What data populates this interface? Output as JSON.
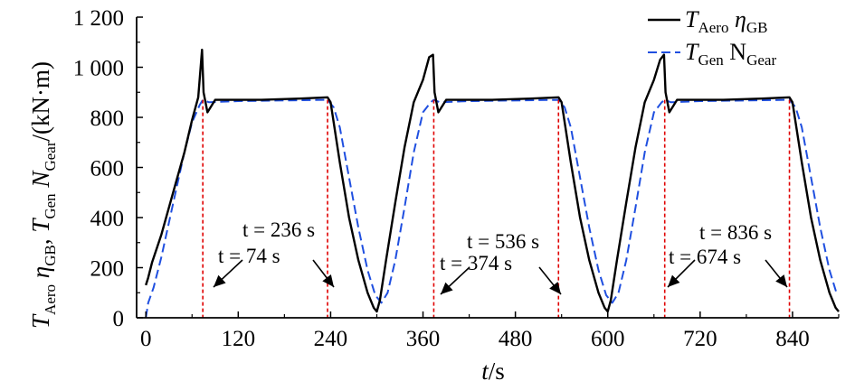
{
  "chart_data": {
    "type": "line",
    "xlabel": {
      "main": "t",
      "unit": "/s"
    },
    "ylabel": {
      "t_aero_main": "T",
      "t_aero_sub": "Aero",
      "eta_main": "η",
      "eta_sub": "GB",
      "sep": ", ",
      "t_gen_main": "T",
      "t_gen_sub": "Gen",
      "n_main": "N",
      "n_sub": "Gear",
      "unit": "/(kN·m)"
    },
    "xlim": [
      -12,
      900
    ],
    "ylim": [
      0,
      1200
    ],
    "x_ticks": [
      0,
      120,
      240,
      360,
      480,
      600,
      720,
      840
    ],
    "x_tick_labels": [
      "0",
      "120",
      "240",
      "360",
      "480",
      "600",
      "720",
      "840"
    ],
    "y_ticks": [
      0,
      200,
      400,
      600,
      800,
      1000,
      1200
    ],
    "y_tick_labels": [
      "0",
      "200",
      "400",
      "600",
      "800",
      "1 000",
      "1 200"
    ],
    "legend": {
      "position": "top-right",
      "entries": [
        {
          "main": "T",
          "sub": "Aero",
          "main2": " η",
          "sub2": "GB",
          "style": "solid",
          "color": "#000000"
        },
        {
          "main": "T",
          "sub": "Gen",
          "main2": " N",
          "sub2": "Gear",
          "style": "dashed",
          "color": "#1f4fe0"
        }
      ]
    },
    "series": [
      {
        "style": "solid",
        "color": "#000000",
        "x": [
          0,
          3,
          8,
          20,
          30,
          40,
          50,
          60,
          68,
          73,
          75,
          80,
          90,
          110,
          150,
          200,
          236,
          240,
          252,
          264,
          276,
          288,
          296,
          300,
          304,
          312,
          324,
          336,
          348,
          360,
          368,
          373,
          375,
          380,
          390,
          410,
          450,
          500,
          536,
          540,
          552,
          564,
          576,
          588,
          596,
          600,
          604,
          612,
          624,
          636,
          648,
          660,
          668,
          673,
          675,
          680,
          690,
          710,
          750,
          800,
          836,
          840,
          852,
          864,
          876,
          888,
          896,
          900
        ],
        "y": [
          130,
          160,
          220,
          330,
          440,
          550,
          660,
          790,
          880,
          1070,
          900,
          820,
          870,
          870,
          870,
          875,
          880,
          860,
          620,
          400,
          230,
          100,
          40,
          25,
          70,
          230,
          460,
          680,
          860,
          950,
          1040,
          1050,
          900,
          820,
          870,
          870,
          870,
          875,
          880,
          860,
          620,
          400,
          230,
          100,
          40,
          25,
          70,
          230,
          460,
          680,
          860,
          950,
          1030,
          1050,
          900,
          820,
          870,
          870,
          870,
          875,
          880,
          860,
          620,
          400,
          230,
          100,
          40,
          25
        ]
      },
      {
        "style": "dashed",
        "color": "#1f4fe0",
        "x": [
          0,
          3,
          10,
          20,
          30,
          40,
          50,
          60,
          70,
          74,
          82,
          120,
          236,
          244,
          252,
          264,
          276,
          288,
          298,
          306,
          314,
          324,
          336,
          348,
          360,
          370,
          374,
          382,
          420,
          536,
          544,
          552,
          564,
          576,
          588,
          598,
          606,
          614,
          624,
          636,
          648,
          660,
          670,
          674,
          682,
          720,
          836,
          844,
          852,
          864,
          876,
          888,
          898
        ],
        "y": [
          0,
          60,
          120,
          240,
          380,
          520,
          660,
          780,
          850,
          870,
          860,
          865,
          870,
          840,
          760,
          560,
          360,
          190,
          90,
          60,
          100,
          230,
          440,
          660,
          820,
          860,
          870,
          860,
          865,
          870,
          840,
          760,
          560,
          360,
          190,
          90,
          60,
          100,
          230,
          440,
          660,
          820,
          860,
          870,
          860,
          865,
          870,
          840,
          760,
          560,
          360,
          190,
          90
        ]
      }
    ],
    "markers": [
      {
        "x": 74,
        "label": "t = 74 s"
      },
      {
        "x": 236,
        "label": "t = 236 s"
      },
      {
        "x": 374,
        "label": "t = 374 s"
      },
      {
        "x": 536,
        "label": "t = 536 s"
      },
      {
        "x": 674,
        "label": "t = 674 s"
      },
      {
        "x": 836,
        "label": "t = 836 s"
      }
    ],
    "marker_color": "#e00000"
  }
}
